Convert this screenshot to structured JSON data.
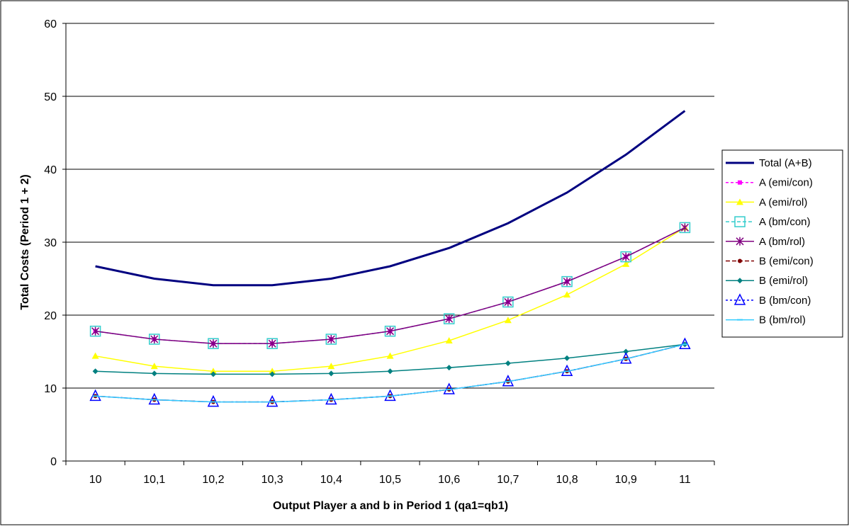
{
  "chart_data": {
    "type": "line",
    "title": "",
    "xlabel": "Output Player a and  b in Period 1 (qa1=qb1)",
    "ylabel": "Total Costs (Period 1 + 2)",
    "categories": [
      "10",
      "10,1",
      "10,2",
      "10,3",
      "10,4",
      "10,5",
      "10,6",
      "10,7",
      "10,8",
      "10,9",
      "11"
    ],
    "yticks": [
      "0",
      "10",
      "20",
      "30",
      "40",
      "50",
      "60"
    ],
    "ylim": [
      0,
      60
    ],
    "grid": "horizontal",
    "legend_position": "right",
    "series": [
      {
        "name": "Total (A+B)",
        "color": "#000080",
        "dash": "",
        "marker": "none",
        "width": 3,
        "values": [
          26.7,
          25.0,
          24.1,
          24.1,
          25.0,
          26.7,
          29.2,
          32.6,
          36.8,
          42.0,
          48.0
        ]
      },
      {
        "name": "A (emi/con)",
        "color": "#FF00FF",
        "dash": "4,3",
        "marker": "square-filled",
        "width": 1.5,
        "values": [
          17.8,
          16.7,
          16.1,
          16.1,
          16.7,
          17.8,
          19.5,
          21.8,
          24.6,
          28.0,
          32.0
        ]
      },
      {
        "name": "A (emi/rol)",
        "color": "#FFFF00",
        "dash": "",
        "marker": "triangle-filled",
        "width": 1.5,
        "values": [
          14.4,
          13.0,
          12.3,
          12.3,
          13.0,
          14.4,
          16.5,
          19.3,
          22.8,
          27.0,
          32.0
        ]
      },
      {
        "name": "A (bm/con)",
        "color": "#33CCCC",
        "dash": "5,3",
        "marker": "square-open",
        "width": 1.5,
        "values": [
          17.8,
          16.7,
          16.1,
          16.1,
          16.7,
          17.8,
          19.5,
          21.8,
          24.6,
          28.0,
          32.0
        ]
      },
      {
        "name": "A (bm/rol)",
        "color": "#800080",
        "dash": "",
        "marker": "star",
        "width": 1.5,
        "values": [
          17.8,
          16.7,
          16.1,
          16.1,
          16.7,
          17.8,
          19.5,
          21.8,
          24.6,
          28.0,
          32.0
        ]
      },
      {
        "name": "B (emi/con)",
        "color": "#800000",
        "dash": "6,3",
        "marker": "circle-filled",
        "width": 1.5,
        "values": [
          8.9,
          8.4,
          8.1,
          8.1,
          8.4,
          8.9,
          9.8,
          10.9,
          12.3,
          14.0,
          16.0
        ]
      },
      {
        "name": "B (emi/rol)",
        "color": "#008080",
        "dash": "",
        "marker": "diamond-filled",
        "width": 1.5,
        "values": [
          12.3,
          12.0,
          11.9,
          11.9,
          12.0,
          12.3,
          12.8,
          13.4,
          14.1,
          15.0,
          16.0
        ]
      },
      {
        "name": "B (bm/con)",
        "color": "#0000FF",
        "dash": "3,3",
        "marker": "triangle-open",
        "width": 1.5,
        "values": [
          8.9,
          8.4,
          8.1,
          8.1,
          8.4,
          8.9,
          9.8,
          10.9,
          12.3,
          14.0,
          16.0
        ]
      },
      {
        "name": "B (bm/rol)",
        "color": "#33CCFF",
        "dash": "",
        "marker": "dash",
        "width": 1.5,
        "values": [
          8.9,
          8.4,
          8.1,
          8.1,
          8.4,
          8.9,
          9.8,
          10.9,
          12.3,
          14.0,
          16.0
        ]
      }
    ]
  }
}
